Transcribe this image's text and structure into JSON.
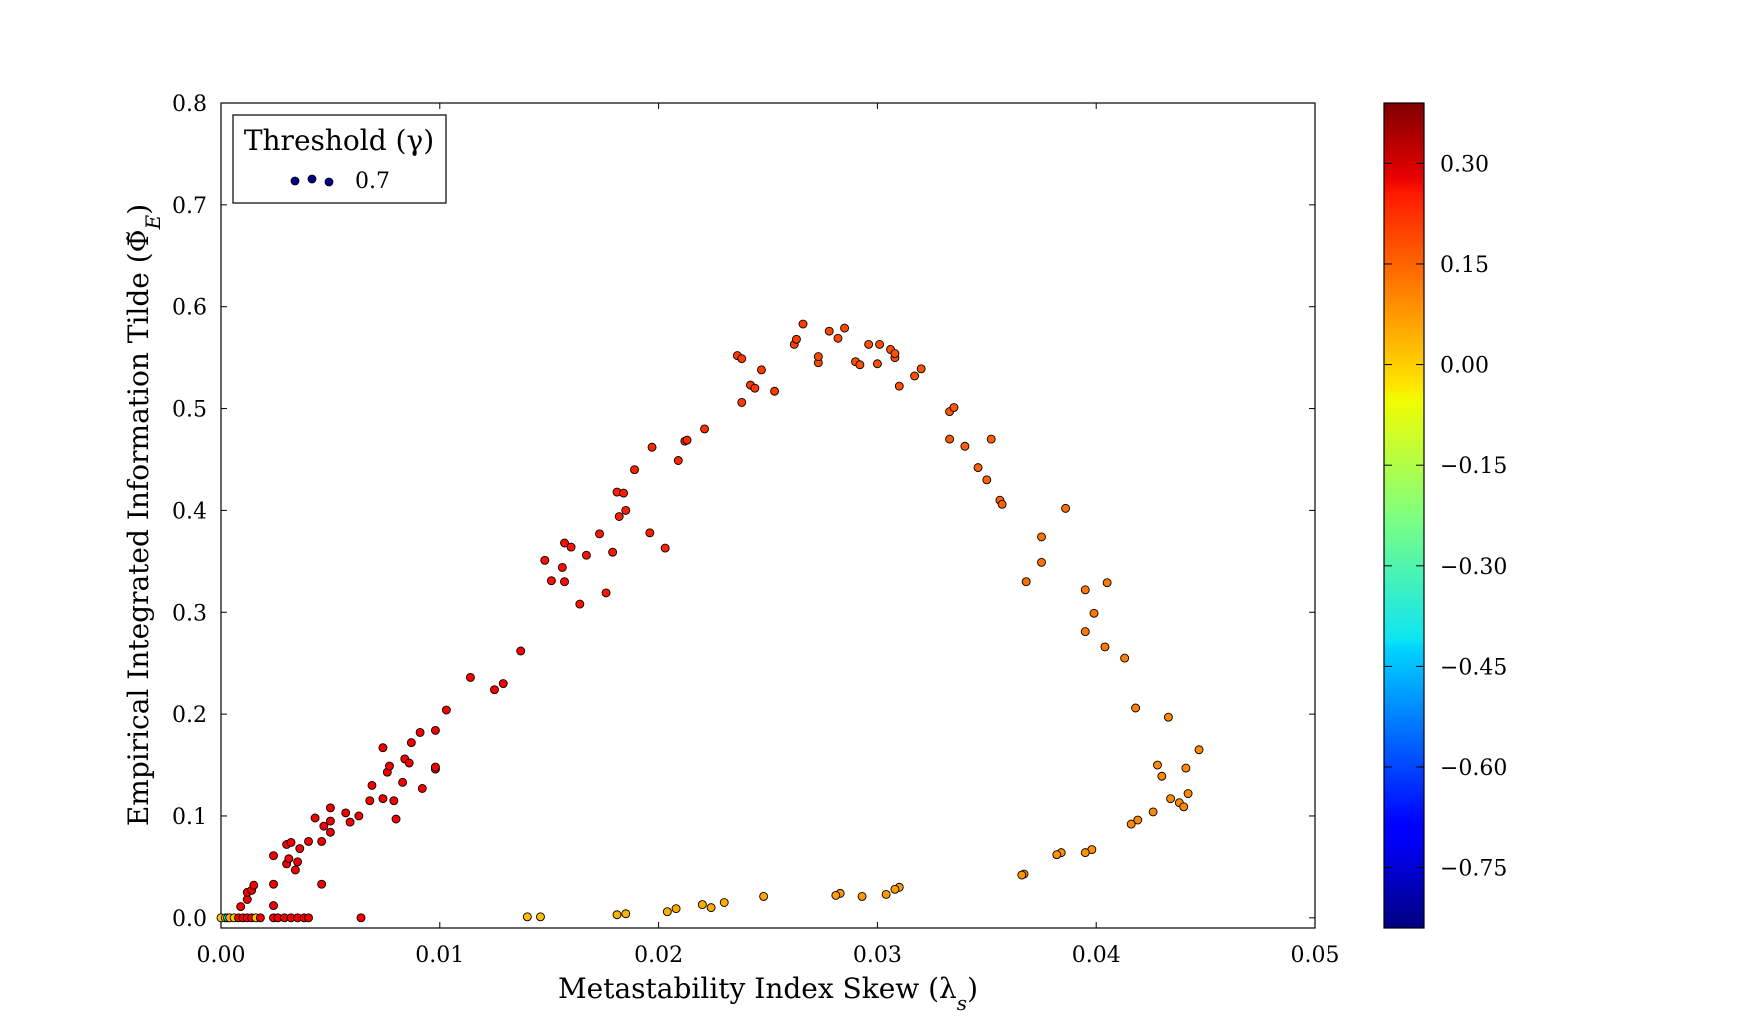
{
  "chart_data": {
    "type": "scatter",
    "title": "",
    "xlabel": "Metastability Index Skew (λ",
    "xlabel_sub": "s",
    "xlabel_close": ")",
    "ylabel": "Empirical Integrated Information Tilde (Φ̃",
    "ylabel_sub": "E",
    "ylabel_close": ")",
    "xlim": [
      0.0,
      0.05
    ],
    "ylim": [
      -0.01,
      0.8
    ],
    "xticks": [
      "0.00",
      "0.01",
      "0.02",
      "0.03",
      "0.04",
      "0.05"
    ],
    "xtick_values": [
      0.0,
      0.01,
      0.02,
      0.03,
      0.04,
      0.05
    ],
    "yticks": [
      "0.0",
      "0.1",
      "0.2",
      "0.3",
      "0.4",
      "0.5",
      "0.6",
      "0.7",
      "0.8"
    ],
    "ytick_values": [
      0.0,
      0.1,
      0.2,
      0.3,
      0.4,
      0.5,
      0.6,
      0.7,
      0.8
    ],
    "grid": false,
    "legend": {
      "placement": "top-left",
      "title": "Threshold (γ)",
      "entries": [
        {
          "label": "0.7",
          "color": "#000080"
        }
      ]
    },
    "colorbar": {
      "colormap": "jet",
      "range": [
        -0.84,
        0.39
      ],
      "ticks": [
        "0.30",
        "0.15",
        "0.00",
        "−0.15",
        "−0.30",
        "−0.45",
        "−0.60",
        "−0.75"
      ],
      "tick_values": [
        0.3,
        0.15,
        0.0,
        -0.15,
        -0.3,
        -0.45,
        -0.6,
        -0.75
      ]
    },
    "series": [
      {
        "name": "0.7",
        "points": [
          [
            0.0,
            0.0,
            0.0
          ],
          [
            0.0002,
            0.0,
            0.0
          ],
          [
            0.0003,
            0.0,
            -0.4
          ],
          [
            0.0004,
            0.0,
            0.02
          ],
          [
            0.0006,
            0.0,
            0.0
          ],
          [
            0.0008,
            0.0,
            0.25
          ],
          [
            0.001,
            0.0,
            0.25
          ],
          [
            0.0012,
            0.0,
            0.25
          ],
          [
            0.0014,
            0.0,
            0.25
          ],
          [
            0.0016,
            0.0,
            0.0
          ],
          [
            0.0018,
            0.0,
            0.25
          ],
          [
            0.0024,
            0.0,
            0.25
          ],
          [
            0.0026,
            0.0,
            0.25
          ],
          [
            0.0029,
            0.0,
            0.25
          ],
          [
            0.0032,
            0.0,
            0.25
          ],
          [
            0.0035,
            0.0,
            0.25
          ],
          [
            0.0038,
            0.0,
            0.25
          ],
          [
            0.004,
            0.0,
            0.25
          ],
          [
            0.0064,
            0.0,
            0.25
          ],
          [
            0.0009,
            0.011,
            0.25
          ],
          [
            0.0012,
            0.018,
            0.25
          ],
          [
            0.0012,
            0.025,
            0.25
          ],
          [
            0.0014,
            0.027,
            0.25
          ],
          [
            0.0015,
            0.032,
            0.25
          ],
          [
            0.0024,
            0.033,
            0.25
          ],
          [
            0.0024,
            0.012,
            0.25
          ],
          [
            0.0024,
            0.061,
            0.25
          ],
          [
            0.003,
            0.053,
            0.25
          ],
          [
            0.003,
            0.072,
            0.25
          ],
          [
            0.0031,
            0.058,
            0.25
          ],
          [
            0.0032,
            0.074,
            0.25
          ],
          [
            0.0034,
            0.047,
            0.25
          ],
          [
            0.0035,
            0.055,
            0.25
          ],
          [
            0.0036,
            0.068,
            0.25
          ],
          [
            0.004,
            0.075,
            0.25
          ],
          [
            0.0043,
            0.098,
            0.25
          ],
          [
            0.0046,
            0.033,
            0.25
          ],
          [
            0.0046,
            0.075,
            0.25
          ],
          [
            0.0047,
            0.09,
            0.25
          ],
          [
            0.005,
            0.095,
            0.25
          ],
          [
            0.005,
            0.084,
            0.25
          ],
          [
            0.005,
            0.108,
            0.25
          ],
          [
            0.0057,
            0.103,
            0.25
          ],
          [
            0.0059,
            0.094,
            0.25
          ],
          [
            0.0063,
            0.1,
            0.25
          ],
          [
            0.0068,
            0.115,
            0.25
          ],
          [
            0.0069,
            0.13,
            0.25
          ],
          [
            0.0074,
            0.117,
            0.25
          ],
          [
            0.0074,
            0.167,
            0.25
          ],
          [
            0.0076,
            0.143,
            0.25
          ],
          [
            0.0077,
            0.149,
            0.25
          ],
          [
            0.0079,
            0.115,
            0.25
          ],
          [
            0.008,
            0.097,
            0.25
          ],
          [
            0.0083,
            0.133,
            0.25
          ],
          [
            0.0084,
            0.156,
            0.25
          ],
          [
            0.0086,
            0.152,
            0.25
          ],
          [
            0.0087,
            0.172,
            0.25
          ],
          [
            0.0091,
            0.182,
            0.25
          ],
          [
            0.0092,
            0.127,
            0.25
          ],
          [
            0.0098,
            0.184,
            0.25
          ],
          [
            0.0098,
            0.146,
            0.25
          ],
          [
            0.0098,
            0.148,
            0.25
          ],
          [
            0.0103,
            0.204,
            0.24
          ],
          [
            0.0114,
            0.236,
            0.24
          ],
          [
            0.0125,
            0.224,
            0.24
          ],
          [
            0.0129,
            0.23,
            0.24
          ],
          [
            0.0137,
            0.262,
            0.24
          ],
          [
            0.0148,
            0.351,
            0.22
          ],
          [
            0.0151,
            0.331,
            0.22
          ],
          [
            0.0156,
            0.344,
            0.22
          ],
          [
            0.0157,
            0.368,
            0.22
          ],
          [
            0.0157,
            0.33,
            0.22
          ],
          [
            0.016,
            0.364,
            0.22
          ],
          [
            0.0164,
            0.308,
            0.22
          ],
          [
            0.0167,
            0.356,
            0.22
          ],
          [
            0.0173,
            0.377,
            0.21
          ],
          [
            0.0176,
            0.319,
            0.21
          ],
          [
            0.0179,
            0.359,
            0.21
          ],
          [
            0.0181,
            0.418,
            0.2
          ],
          [
            0.0182,
            0.394,
            0.2
          ],
          [
            0.0184,
            0.417,
            0.2
          ],
          [
            0.0185,
            0.4,
            0.2
          ],
          [
            0.0189,
            0.44,
            0.2
          ],
          [
            0.0196,
            0.378,
            0.2
          ],
          [
            0.0197,
            0.462,
            0.19
          ],
          [
            0.0203,
            0.363,
            0.19
          ],
          [
            0.0209,
            0.449,
            0.19
          ],
          [
            0.0212,
            0.468,
            0.19
          ],
          [
            0.0213,
            0.469,
            0.19
          ],
          [
            0.0221,
            0.48,
            0.18
          ],
          [
            0.0236,
            0.552,
            0.17
          ],
          [
            0.0238,
            0.549,
            0.17
          ],
          [
            0.0238,
            0.506,
            0.17
          ],
          [
            0.0242,
            0.523,
            0.17
          ],
          [
            0.0244,
            0.52,
            0.17
          ],
          [
            0.0247,
            0.538,
            0.17
          ],
          [
            0.0253,
            0.517,
            0.17
          ],
          [
            0.0262,
            0.563,
            0.16
          ],
          [
            0.0263,
            0.568,
            0.16
          ],
          [
            0.0266,
            0.583,
            0.16
          ],
          [
            0.0273,
            0.545,
            0.15
          ],
          [
            0.0273,
            0.551,
            0.15
          ],
          [
            0.0278,
            0.576,
            0.15
          ],
          [
            0.0282,
            0.569,
            0.15
          ],
          [
            0.0285,
            0.579,
            0.15
          ],
          [
            0.029,
            0.546,
            0.14
          ],
          [
            0.0292,
            0.543,
            0.14
          ],
          [
            0.0296,
            0.563,
            0.14
          ],
          [
            0.03,
            0.544,
            0.14
          ],
          [
            0.0301,
            0.563,
            0.14
          ],
          [
            0.0306,
            0.558,
            0.14
          ],
          [
            0.0308,
            0.55,
            0.14
          ],
          [
            0.0308,
            0.554,
            0.14
          ],
          [
            0.031,
            0.522,
            0.14
          ],
          [
            0.0317,
            0.532,
            0.14
          ],
          [
            0.032,
            0.539,
            0.14
          ],
          [
            0.0333,
            0.497,
            0.13
          ],
          [
            0.0333,
            0.47,
            0.13
          ],
          [
            0.0335,
            0.501,
            0.13
          ],
          [
            0.034,
            0.463,
            0.12
          ],
          [
            0.0346,
            0.442,
            0.12
          ],
          [
            0.035,
            0.43,
            0.12
          ],
          [
            0.0352,
            0.47,
            0.12
          ],
          [
            0.0356,
            0.41,
            0.12
          ],
          [
            0.0357,
            0.406,
            0.12
          ],
          [
            0.0368,
            0.33,
            0.1
          ],
          [
            0.0375,
            0.374,
            0.1
          ],
          [
            0.0375,
            0.349,
            0.1
          ],
          [
            0.0386,
            0.402,
            0.1
          ],
          [
            0.0395,
            0.322,
            0.09
          ],
          [
            0.0395,
            0.281,
            0.09
          ],
          [
            0.0399,
            0.299,
            0.09
          ],
          [
            0.0404,
            0.266,
            0.09
          ],
          [
            0.0405,
            0.329,
            0.09
          ],
          [
            0.0413,
            0.255,
            0.08
          ],
          [
            0.0418,
            0.206,
            0.08
          ],
          [
            0.0433,
            0.197,
            0.07
          ],
          [
            0.0447,
            0.165,
            0.07
          ],
          [
            0.0428,
            0.15,
            0.07
          ],
          [
            0.043,
            0.139,
            0.07
          ],
          [
            0.0441,
            0.147,
            0.07
          ],
          [
            0.0442,
            0.122,
            0.07
          ],
          [
            0.0434,
            0.117,
            0.07
          ],
          [
            0.0438,
            0.113,
            0.07
          ],
          [
            0.044,
            0.109,
            0.07
          ],
          [
            0.0426,
            0.104,
            0.07
          ],
          [
            0.0419,
            0.096,
            0.07
          ],
          [
            0.0416,
            0.092,
            0.07
          ],
          [
            0.0398,
            0.067,
            0.06
          ],
          [
            0.0395,
            0.064,
            0.06
          ],
          [
            0.0384,
            0.064,
            0.06
          ],
          [
            0.0382,
            0.062,
            0.06
          ],
          [
            0.0367,
            0.043,
            0.06
          ],
          [
            0.0366,
            0.042,
            0.06
          ],
          [
            0.031,
            0.03,
            0.05
          ],
          [
            0.0308,
            0.028,
            0.05
          ],
          [
            0.0304,
            0.023,
            0.05
          ],
          [
            0.0293,
            0.021,
            0.05
          ],
          [
            0.0283,
            0.024,
            0.05
          ],
          [
            0.0281,
            0.022,
            0.05
          ],
          [
            0.0248,
            0.021,
            0.04
          ],
          [
            0.023,
            0.015,
            0.03
          ],
          [
            0.0224,
            0.01,
            0.03
          ],
          [
            0.022,
            0.013,
            0.03
          ],
          [
            0.0208,
            0.009,
            0.03
          ],
          [
            0.0204,
            0.006,
            0.03
          ],
          [
            0.0185,
            0.004,
            0.02
          ],
          [
            0.0181,
            0.003,
            0.02
          ],
          [
            0.0146,
            0.001,
            0.01
          ],
          [
            0.014,
            0.001,
            0.01
          ]
        ]
      }
    ]
  }
}
